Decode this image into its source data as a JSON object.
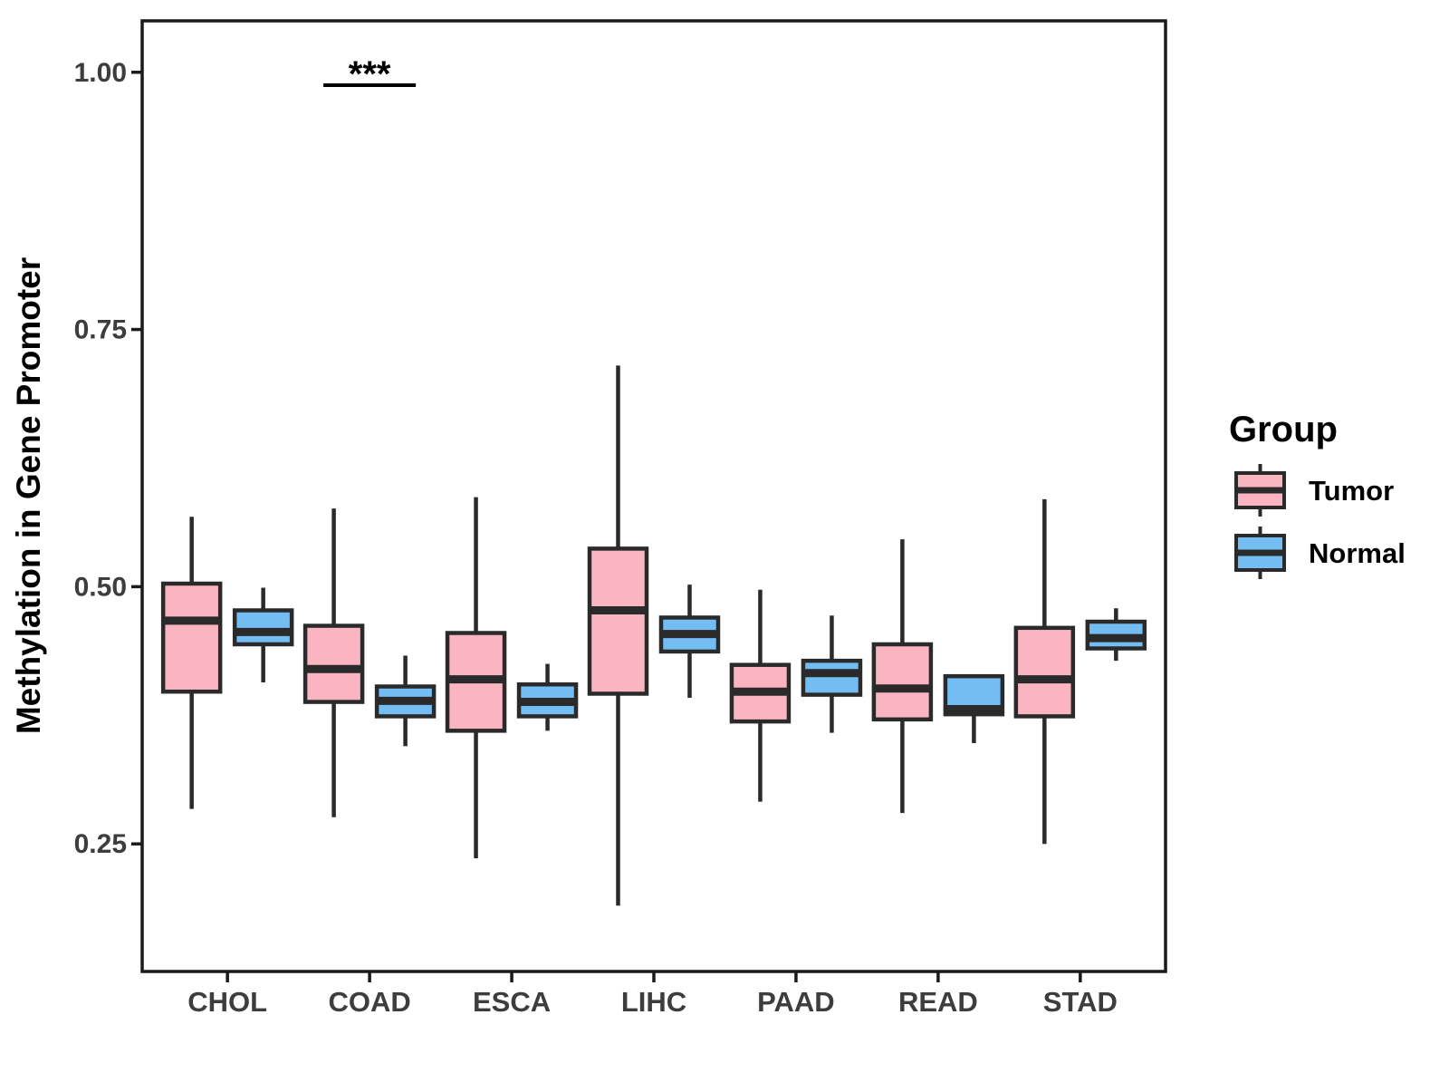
{
  "figure": {
    "ylabel": "Methylation in Gene Promoter",
    "legend_title": "Group"
  },
  "chart_data": {
    "type": "boxplot",
    "title": "",
    "xlabel": "",
    "ylabel": "Methylation in Gene Promoter",
    "ylim": [
      0.126,
      1.05
    ],
    "yticks": [
      0.25,
      0.5,
      0.75,
      1.0
    ],
    "ytick_labels": [
      "0.25",
      "0.50",
      "0.75",
      "1.00"
    ],
    "categories": [
      "CHOL",
      "COAD",
      "ESCA",
      "LIHC",
      "PAAD",
      "READ",
      "STAD"
    ],
    "grid": "off",
    "legend": {
      "title": "Group",
      "position": "right",
      "entries": [
        "Tumor",
        "Normal"
      ]
    },
    "series": [
      {
        "name": "Tumor",
        "color": "#FBB5C2",
        "boxes": [
          {
            "category": "CHOL",
            "whisker_low": 0.284,
            "q1": 0.398,
            "median": 0.467,
            "q3": 0.503,
            "whisker_high": 0.568
          },
          {
            "category": "COAD",
            "whisker_low": 0.276,
            "q1": 0.388,
            "median": 0.42,
            "q3": 0.462,
            "whisker_high": 0.576
          },
          {
            "category": "ESCA",
            "whisker_low": 0.236,
            "q1": 0.36,
            "median": 0.41,
            "q3": 0.455,
            "whisker_high": 0.587
          },
          {
            "category": "LIHC",
            "whisker_low": 0.19,
            "q1": 0.396,
            "median": 0.477,
            "q3": 0.537,
            "whisker_high": 0.715
          },
          {
            "category": "PAAD",
            "whisker_low": 0.291,
            "q1": 0.369,
            "median": 0.398,
            "q3": 0.424,
            "whisker_high": 0.497
          },
          {
            "category": "READ",
            "whisker_low": 0.28,
            "q1": 0.371,
            "median": 0.401,
            "q3": 0.444,
            "whisker_high": 0.546
          },
          {
            "category": "STAD",
            "whisker_low": 0.25,
            "q1": 0.374,
            "median": 0.41,
            "q3": 0.46,
            "whisker_high": 0.585
          }
        ]
      },
      {
        "name": "Normal",
        "color": "#73BDF3",
        "boxes": [
          {
            "category": "CHOL",
            "whisker_low": 0.407,
            "q1": 0.444,
            "median": 0.456,
            "q3": 0.477,
            "whisker_high": 0.499
          },
          {
            "category": "COAD",
            "whisker_low": 0.345,
            "q1": 0.374,
            "median": 0.389,
            "q3": 0.403,
            "whisker_high": 0.433
          },
          {
            "category": "ESCA",
            "whisker_low": 0.36,
            "q1": 0.374,
            "median": 0.388,
            "q3": 0.405,
            "whisker_high": 0.425
          },
          {
            "category": "LIHC",
            "whisker_low": 0.392,
            "q1": 0.437,
            "median": 0.454,
            "q3": 0.47,
            "whisker_high": 0.502
          },
          {
            "category": "PAAD",
            "whisker_low": 0.358,
            "q1": 0.395,
            "median": 0.416,
            "q3": 0.428,
            "whisker_high": 0.472
          },
          {
            "category": "READ",
            "whisker_low": 0.348,
            "q1": 0.376,
            "median": 0.381,
            "q3": 0.413,
            "whisker_high": 0.413
          },
          {
            "category": "STAD",
            "whisker_low": 0.428,
            "q1": 0.44,
            "median": 0.45,
            "q3": 0.466,
            "whisker_high": 0.479
          }
        ]
      }
    ],
    "annotations": [
      {
        "label": "***",
        "category": "COAD",
        "y": 0.9875
      }
    ],
    "colors": {
      "tumor_fill": "#FBB5C2",
      "normal_fill": "#73BDF3",
      "stroke": "#2A2A2A",
      "panel_border": "#1A1A1A",
      "axis_text": "#3D3D3D",
      "axis_title": "#000000"
    }
  }
}
